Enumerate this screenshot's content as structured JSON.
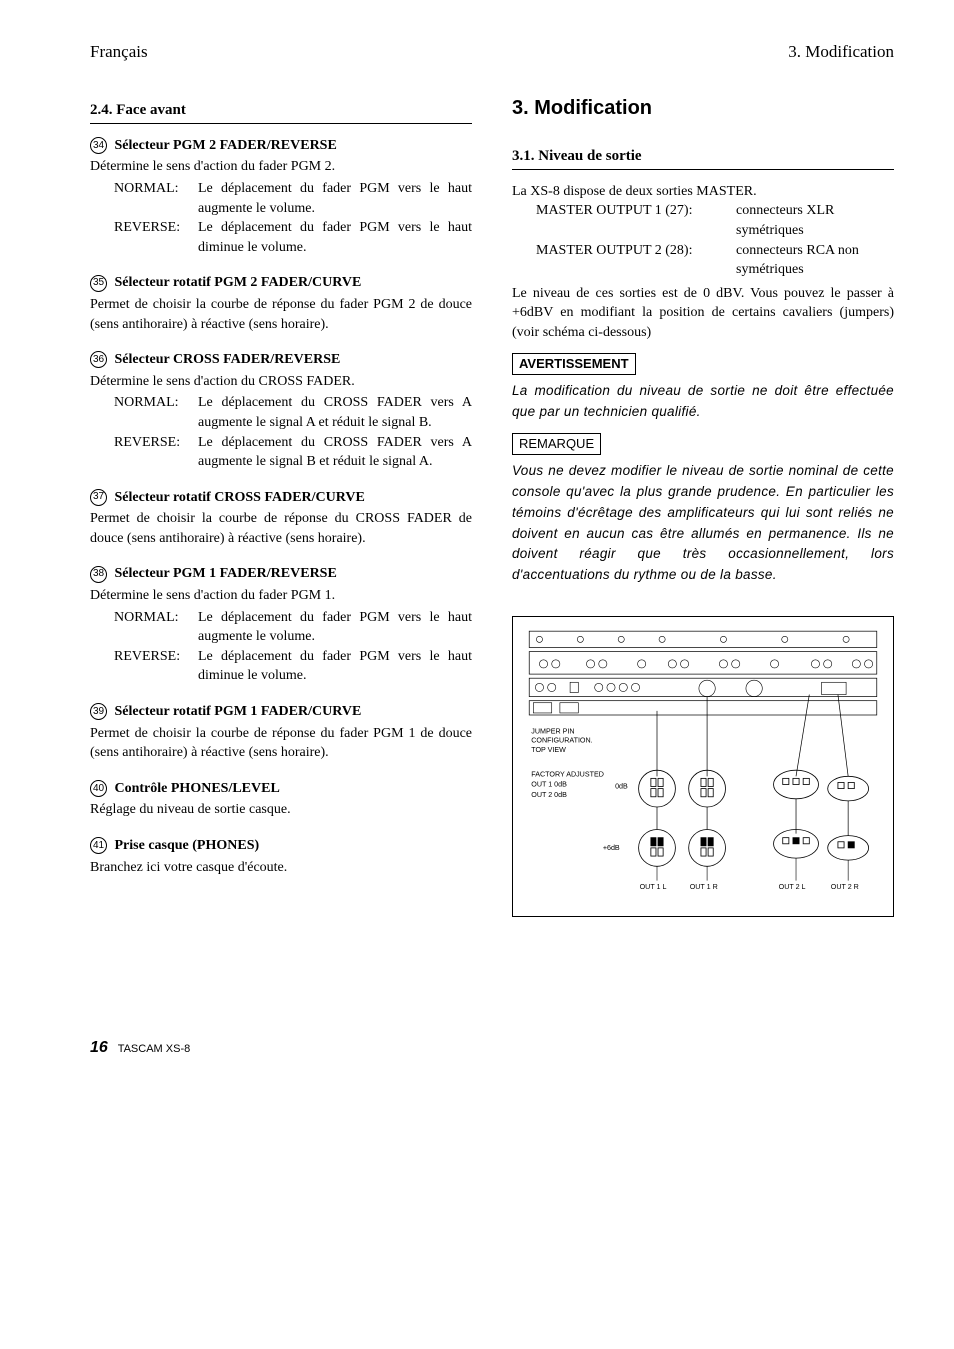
{
  "header": {
    "left": "Français",
    "right": "3. Modification"
  },
  "left_col": {
    "section_title": "2.4. Face avant",
    "items": [
      {
        "num": "34",
        "title": "Sélecteur PGM 2 FADER/REVERSE",
        "desc": "Détermine le sens d'action du fader PGM 2.",
        "defs": [
          {
            "term": "NORMAL:",
            "body": "Le déplacement du fader PGM vers le haut augmente le volume."
          },
          {
            "term": "REVERSE:",
            "body": "Le déplacement du fader PGM vers le haut diminue le volume."
          }
        ]
      },
      {
        "num": "35",
        "title": "Sélecteur rotatif PGM 2 FADER/CURVE",
        "desc": "Permet de choisir la courbe de réponse du fader PGM 2 de douce (sens antihoraire) à réactive (sens horaire)."
      },
      {
        "num": "36",
        "title": "Sélecteur CROSS FADER/REVERSE",
        "desc": "Détermine le sens d'action du CROSS FADER.",
        "defs": [
          {
            "term": "NORMAL:",
            "body": "Le déplacement du CROSS FADER vers A augmente le signal A et réduit le signal B."
          },
          {
            "term": "REVERSE:",
            "body": "Le déplacement du CROSS FADER vers A augmente le signal B et réduit le signal A."
          }
        ]
      },
      {
        "num": "37",
        "title": "Sélecteur rotatif CROSS FADER/CURVE",
        "desc": "Permet de choisir la courbe de réponse du CROSS FADER de douce (sens antihoraire) à réactive (sens horaire)."
      },
      {
        "num": "38",
        "title": "Sélecteur PGM 1 FADER/REVERSE",
        "desc": "Détermine le sens d'action du fader PGM 1.",
        "defs": [
          {
            "term": "NORMAL:",
            "body": "Le déplacement du fader PGM vers le haut augmente le volume."
          },
          {
            "term": "REVERSE:",
            "body": "Le déplacement du fader PGM vers le haut diminue le volume."
          }
        ]
      },
      {
        "num": "39",
        "title": "Sélecteur rotatif  PGM 1 FADER/CURVE",
        "desc": " Permet de choisir la courbe de réponse du fader PGM 1 de douce (sens antihoraire) à réactive (sens horaire)."
      },
      {
        "num": "40",
        "title": "Contrôle PHONES/LEVEL",
        "desc": "Réglage du niveau de sortie casque."
      },
      {
        "num": "41",
        "title": "Prise casque (PHONES)",
        "desc": "Branchez ici votre casque d'écoute."
      }
    ]
  },
  "right_col": {
    "chapter_title": "3. Modification",
    "section_title": "3.1. Niveau de sortie",
    "intro": "La XS-8 dispose de deux sorties MASTER.",
    "specs": [
      {
        "label": "MASTER OUTPUT 1 (27):",
        "value": "connecteurs XLR symétriques"
      },
      {
        "label": "MASTER OUTPUT 2 (28):",
        "value": "connecteurs RCA non symétriques"
      }
    ],
    "para": "Le niveau de ces sorties est de 0 dBV.  Vous pouvez le passer à +6dBV en modifiant  la position de certains cavaliers (jumpers) (voir schéma ci-dessous)",
    "warn_label": "AVERTISSEMENT",
    "warn_text": "La modification du niveau de sortie ne doit être effectuée que par un technicien qualifié.",
    "rem_label": "REMARQUE",
    "rem_text": "Vous ne devez modifier le niveau de sortie nominal de cette console qu'avec la plus grande prudence. En particulier les témoins d'écrêtage des amplificateurs qui lui sont reliés ne doivent en aucun cas être allumés en permanence. Ils ne doivent réagir que très occasionnellement, lors d'accentuations du rythme ou de la basse."
  },
  "diagram": {
    "text1": "JUMPER PIN",
    "text2": "CONFIGURATION.",
    "text3": "TOP VIEW",
    "factory": "FACTORY ADJUSTED",
    "out1": "OUT 1       0dB",
    "out2": "OUT 2       0dB",
    "gain": "+6dB",
    "zero": "0dB",
    "labels": [
      "OUT 1 L",
      "OUT 1 R",
      "OUT 2 L",
      "OUT 2 R"
    ]
  },
  "footer": {
    "page": "16",
    "model": "TASCAM XS-8"
  }
}
